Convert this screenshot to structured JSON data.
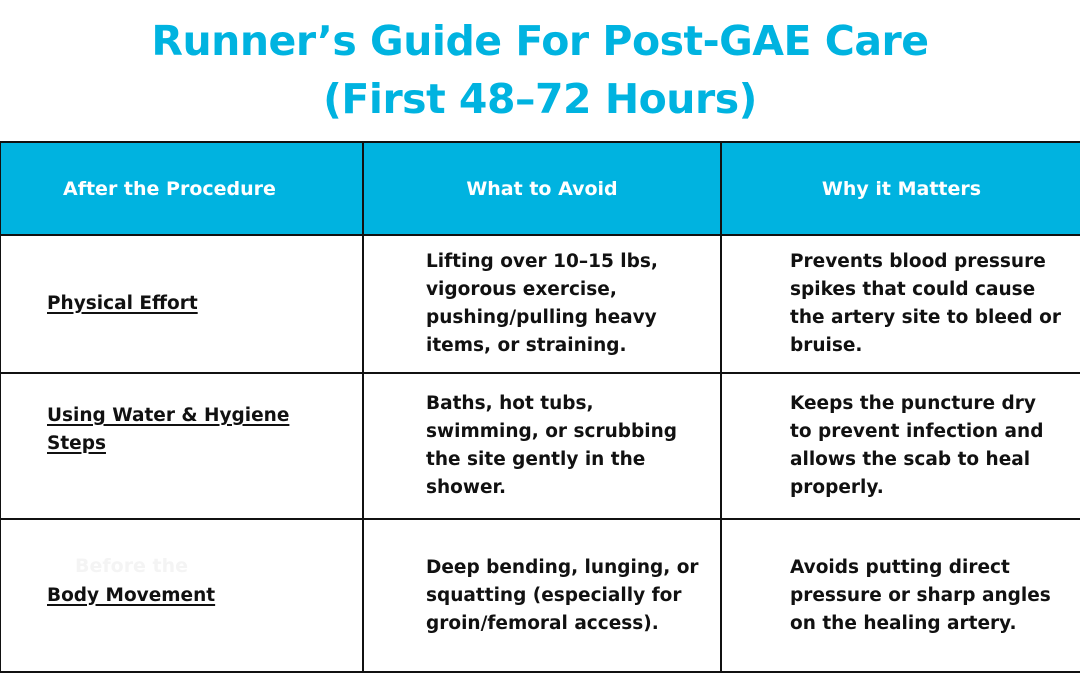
{
  "title": {
    "line1": "Runner’s Guide For Post-GAE Care",
    "line2": "(First 48–72 Hours)"
  },
  "colors": {
    "accent": "#00b3e0",
    "text": "#111111"
  },
  "table": {
    "headers": [
      "After the Procedure",
      "What to Avoid",
      "Why it Matters"
    ],
    "rows": [
      {
        "category": "Physical Effort",
        "avoid": "Lifting over 10–15 lbs, vigorous exercise, pushing/pulling heavy items, or straining.",
        "why": "Prevents blood pressure spikes that could cause the artery site to bleed or bruise."
      },
      {
        "category": "Using Water & Hygiene Steps",
        "avoid": "Baths, hot tubs, swimming, or scrubbing the site gently in the shower.",
        "why": "Keeps the puncture dry to prevent infection and allows the scab to heal properly."
      },
      {
        "category": "Body Movement",
        "ghost": "Before the",
        "avoid": "Deep bending, lunging, or squatting (especially for groin/femoral access).",
        "why": "Avoids putting direct pressure or sharp angles on the healing artery."
      }
    ]
  }
}
